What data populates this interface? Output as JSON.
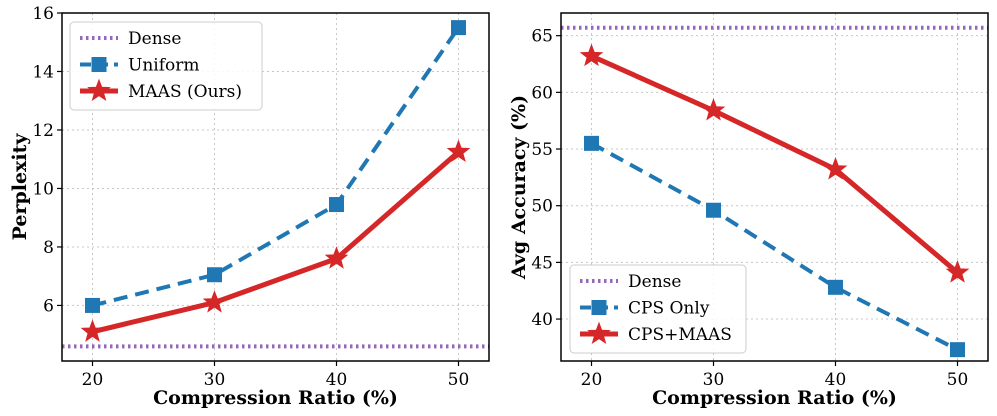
{
  "chart_data": [
    {
      "type": "line",
      "xlabel": "Compression Ratio (%)",
      "ylabel": "Perplexity",
      "x": [
        20,
        30,
        40,
        50
      ],
      "xticks": [
        20,
        30,
        40,
        50
      ],
      "yticks": [
        6,
        8,
        10,
        12,
        14,
        16
      ],
      "xlim": [
        17.5,
        52.5
      ],
      "ylim": [
        4.1,
        16.0
      ],
      "grid": true,
      "legend_position": "top-left",
      "baseline": {
        "name": "Dense",
        "value": 4.6,
        "color": "#9467bd"
      },
      "series": [
        {
          "name": "Uniform",
          "values": [
            6.0,
            7.05,
            9.45,
            15.5
          ],
          "color": "#1f77b4",
          "marker": "square",
          "style": "dashed"
        },
        {
          "name": "MAAS (Ours)",
          "values": [
            5.1,
            6.1,
            7.6,
            11.25
          ],
          "color": "#d62728",
          "marker": "star",
          "style": "solid"
        }
      ]
    },
    {
      "type": "line",
      "xlabel": "Compression Ratio (%)",
      "ylabel": "Avg Accuracy (%)",
      "x": [
        20,
        30,
        40,
        50
      ],
      "xticks": [
        20,
        30,
        40,
        50
      ],
      "yticks": [
        40,
        45,
        50,
        55,
        60,
        65
      ],
      "xlim": [
        17.5,
        52.5
      ],
      "ylim": [
        36.3,
        67.0
      ],
      "grid": true,
      "legend_position": "bottom-left",
      "baseline": {
        "name": "Dense",
        "value": 65.7,
        "color": "#9467bd"
      },
      "series": [
        {
          "name": "CPS Only",
          "values": [
            55.5,
            49.6,
            42.8,
            37.3
          ],
          "color": "#1f77b4",
          "marker": "square",
          "style": "dashed"
        },
        {
          "name": "CPS+MAAS",
          "values": [
            63.2,
            58.4,
            53.2,
            44.1
          ],
          "color": "#d62728",
          "marker": "star",
          "style": "solid"
        }
      ]
    }
  ]
}
